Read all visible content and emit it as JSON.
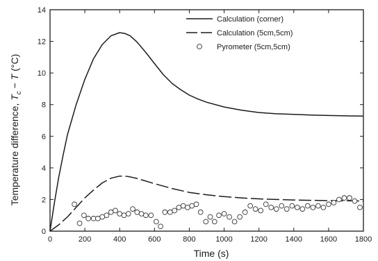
{
  "chart_data": {
    "type": "line",
    "xlabel": "Time (s)",
    "ylabel_prefix": "Temperature difference, ",
    "ylabel_math": "T",
    "ylabel_sub": "c",
    "ylabel_suffix_minus": " − ",
    "ylabel_math2": "T",
    "ylabel_units": " (°C)",
    "xlim": [
      0,
      1800
    ],
    "ylim": [
      0,
      14
    ],
    "x_ticks": [
      0,
      200,
      400,
      600,
      800,
      1000,
      1200,
      1400,
      1600,
      1800
    ],
    "y_ticks": [
      0,
      2,
      4,
      6,
      8,
      10,
      12,
      14
    ],
    "grid": false,
    "legend_position": "top-right",
    "series": [
      {
        "name": "Calculation (corner)",
        "style": "solid",
        "x": [
          0,
          25,
          50,
          75,
          100,
          150,
          200,
          250,
          300,
          350,
          400,
          430,
          460,
          500,
          550,
          600,
          650,
          700,
          750,
          800,
          850,
          900,
          1000,
          1100,
          1200,
          1300,
          1400,
          1500,
          1600,
          1700,
          1800
        ],
        "y": [
          0,
          1.8,
          3.4,
          4.8,
          6.1,
          8.0,
          9.6,
          10.9,
          11.8,
          12.35,
          12.55,
          12.5,
          12.35,
          11.95,
          11.3,
          10.6,
          9.9,
          9.35,
          8.95,
          8.6,
          8.35,
          8.15,
          7.85,
          7.65,
          7.5,
          7.42,
          7.38,
          7.34,
          7.31,
          7.29,
          7.27
        ]
      },
      {
        "name": "Calculation (5cm,5cm)",
        "style": "dashed",
        "x": [
          0,
          50,
          100,
          150,
          200,
          250,
          300,
          350,
          400,
          430,
          460,
          500,
          600,
          700,
          800,
          900,
          1000,
          1100,
          1200,
          1300,
          1400,
          1500,
          1600,
          1700,
          1800
        ],
        "y": [
          0,
          0.4,
          0.9,
          1.5,
          2.1,
          2.6,
          3.05,
          3.35,
          3.48,
          3.48,
          3.43,
          3.33,
          3.0,
          2.7,
          2.45,
          2.3,
          2.18,
          2.1,
          2.04,
          2.0,
          1.97,
          1.95,
          1.93,
          1.92,
          1.91
        ]
      },
      {
        "name": "Pyrometer (5cm,5cm)",
        "style": "marker",
        "x": [
          140,
          170,
          195,
          220,
          250,
          275,
          300,
          325,
          350,
          375,
          400,
          425,
          450,
          475,
          500,
          525,
          550,
          580,
          610,
          635,
          660,
          690,
          715,
          740,
          765,
          790,
          815,
          840,
          865,
          895,
          920,
          945,
          970,
          1000,
          1030,
          1060,
          1090,
          1120,
          1150,
          1180,
          1210,
          1240,
          1270,
          1300,
          1330,
          1360,
          1390,
          1420,
          1450,
          1480,
          1510,
          1540,
          1570,
          1600,
          1630,
          1660,
          1690,
          1720,
          1750,
          1780
        ],
        "y": [
          1.7,
          0.5,
          1.0,
          0.8,
          0.8,
          0.8,
          0.9,
          1.0,
          1.2,
          1.3,
          1.1,
          1.0,
          1.1,
          1.4,
          1.2,
          1.1,
          1.0,
          1.0,
          0.6,
          0.3,
          1.2,
          1.2,
          1.3,
          1.5,
          1.6,
          1.5,
          1.6,
          1.7,
          1.2,
          0.6,
          0.9,
          0.6,
          1.0,
          1.1,
          0.9,
          0.6,
          0.9,
          1.2,
          1.6,
          1.4,
          1.3,
          1.7,
          1.5,
          1.4,
          1.6,
          1.4,
          1.6,
          1.5,
          1.4,
          1.6,
          1.5,
          1.6,
          1.5,
          1.7,
          1.8,
          2.0,
          2.1,
          2.1,
          1.9,
          1.5
        ]
      }
    ]
  }
}
